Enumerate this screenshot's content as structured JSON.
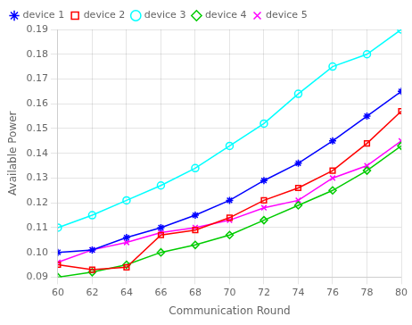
{
  "chart_data": {
    "type": "line",
    "x_label": "Communication Round",
    "y_label": "Available Power",
    "x": [
      60,
      62,
      64,
      66,
      68,
      70,
      72,
      74,
      76,
      78,
      80
    ],
    "series": [
      {
        "name": "device 1",
        "color": "#0000FF",
        "marker": "star",
        "values": [
          0.1,
          0.101,
          0.106,
          0.11,
          0.115,
          0.121,
          0.129,
          0.136,
          0.145,
          0.155,
          0.165
        ]
      },
      {
        "name": "device 2",
        "color": "#FF0000",
        "marker": "square",
        "values": [
          0.095,
          0.093,
          0.094,
          0.107,
          0.109,
          0.114,
          0.121,
          0.126,
          0.133,
          0.144,
          0.157
        ]
      },
      {
        "name": "device 3",
        "color": "#00FFFF",
        "marker": "circle",
        "values": [
          0.11,
          0.115,
          0.121,
          0.127,
          0.134,
          0.143,
          0.152,
          0.164,
          0.175,
          0.18,
          0.19
        ]
      },
      {
        "name": "device 4",
        "color": "#00CC00",
        "marker": "diamond",
        "values": [
          0.09,
          0.092,
          0.095,
          0.1,
          0.103,
          0.107,
          0.113,
          0.119,
          0.125,
          0.133,
          0.143
        ]
      },
      {
        "name": "device 5",
        "color": "#FF00FF",
        "marker": "cross",
        "values": [
          0.096,
          0.101,
          0.104,
          0.108,
          0.11,
          0.113,
          0.118,
          0.121,
          0.13,
          0.135,
          0.145
        ]
      }
    ],
    "xlim": [
      60,
      80
    ],
    "ylim": [
      0.09,
      0.19
    ],
    "xticks": [
      60,
      62,
      64,
      66,
      68,
      70,
      72,
      74,
      76,
      78,
      80
    ],
    "yticks": [
      0.09,
      {
        "value": 0.1,
        "label": "0.10"
      },
      0.11,
      0.12,
      0.13,
      0.14,
      0.15,
      0.16,
      0.17,
      0.18,
      0.19
    ],
    "grid": true,
    "legend": "upper left"
  }
}
